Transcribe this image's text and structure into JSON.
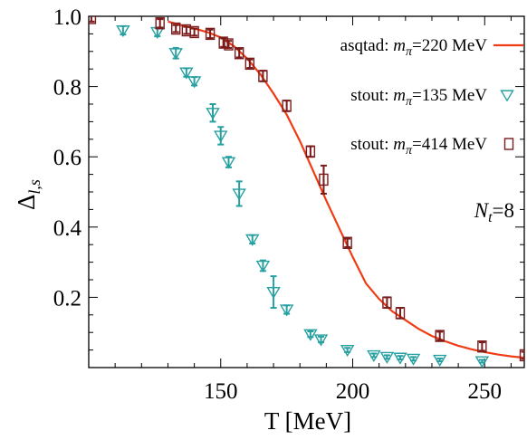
{
  "chart_data": {
    "type": "scatter",
    "xlabel": "T [MeV]",
    "ylabel": "Δ",
    "ylabel_sub": "l,s",
    "xlim": [
      100,
      265
    ],
    "ylim": [
      0,
      1.0
    ],
    "xticks": [
      150,
      200,
      250
    ],
    "yticks": [
      0.2,
      0.4,
      0.6,
      0.8,
      1.0
    ],
    "xtick_labels": [
      "150",
      "200",
      "250"
    ],
    "ytick_labels": [
      "0.2",
      "0.4",
      "0.6",
      "0.8",
      "1.0"
    ],
    "legend_position": "top-right",
    "annotation": {
      "main": "N",
      "sub": "t",
      "rest": "=8"
    },
    "series": [
      {
        "name_prefix": "asqtad: ",
        "name_var": "m",
        "name_sub": "π",
        "name_rest": "=220 MeV",
        "marker": "line",
        "color": "#f03c14",
        "x": [
          130,
          135,
          140,
          145,
          150,
          155,
          160,
          165,
          170,
          175,
          180,
          185,
          190,
          195,
          200,
          205,
          210,
          215,
          220,
          225,
          230,
          235,
          240,
          245,
          250,
          255,
          260,
          265
        ],
        "y": [
          0.985,
          0.975,
          0.965,
          0.955,
          0.94,
          0.915,
          0.88,
          0.835,
          0.78,
          0.72,
          0.645,
          0.56,
          0.475,
          0.395,
          0.315,
          0.24,
          0.195,
          0.16,
          0.135,
          0.11,
          0.09,
          0.075,
          0.062,
          0.052,
          0.044,
          0.037,
          0.032,
          0.028
        ]
      },
      {
        "name_prefix": "stout: ",
        "name_var": "m",
        "name_sub": "π",
        "name_rest": "=135 MeV",
        "marker": "triangle-down",
        "color": "#26a0a0",
        "x": [
          113,
          126,
          133,
          137,
          140,
          147,
          150,
          153,
          157,
          162,
          166,
          170,
          175,
          184,
          188,
          198,
          208,
          213,
          218,
          223,
          233,
          249
        ],
        "y": [
          0.96,
          0.955,
          0.895,
          0.84,
          0.815,
          0.725,
          0.66,
          0.585,
          0.495,
          0.365,
          0.29,
          0.215,
          0.165,
          0.095,
          0.08,
          0.05,
          0.035,
          0.03,
          0.028,
          0.025,
          0.022,
          0.018
        ],
        "err": [
          0.012,
          0.012,
          0.015,
          0.012,
          0.012,
          0.025,
          0.025,
          0.015,
          0.035,
          0.012,
          0.015,
          0.045,
          0.012,
          0.008,
          0.008,
          0.006,
          0.005,
          0.005,
          0.005,
          0.005,
          0.004,
          0.004
        ]
      },
      {
        "name_prefix": "stout: ",
        "name_var": "m",
        "name_sub": "π",
        "name_rest": "=414 MeV",
        "marker": "square",
        "color": "#7a1a1a",
        "x": [
          101,
          127,
          133,
          137,
          140,
          146,
          151,
          153,
          157,
          161,
          166,
          175,
          184,
          189,
          198,
          213,
          218,
          233,
          249,
          265
        ],
        "y": [
          0.995,
          0.98,
          0.965,
          0.96,
          0.955,
          0.95,
          0.925,
          0.92,
          0.895,
          0.865,
          0.83,
          0.745,
          0.615,
          0.535,
          0.355,
          0.185,
          0.155,
          0.09,
          0.06,
          0.035
        ],
        "err": [
          0.01,
          0.012,
          0.01,
          0.01,
          0.01,
          0.012,
          0.012,
          0.01,
          0.012,
          0.012,
          0.015,
          0.015,
          0.015,
          0.04,
          0.012,
          0.015,
          0.015,
          0.012,
          0.012,
          0.01
        ]
      }
    ]
  }
}
